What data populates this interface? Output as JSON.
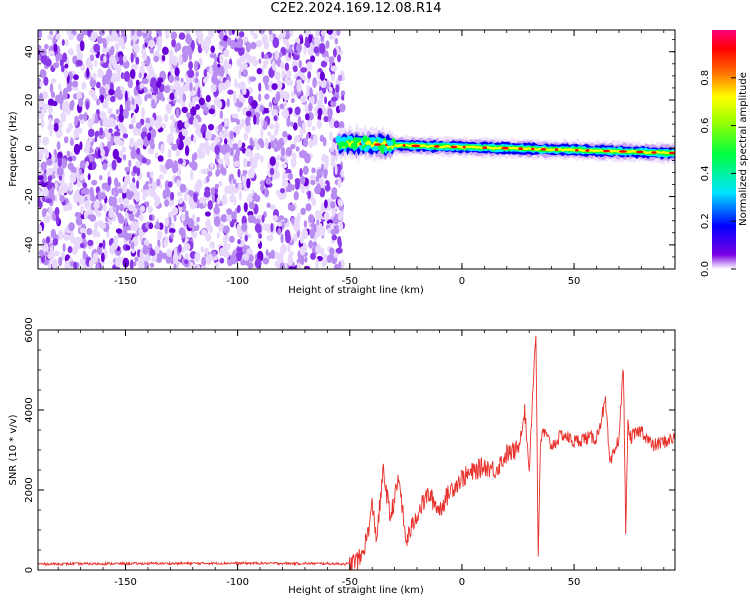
{
  "title": "C2E2.2024.169.12.08.R14",
  "colors": {
    "snr_line": "#e8302a",
    "colormap": [
      "#ffffff",
      "#7a00e6",
      "#0000ff",
      "#00e5ff",
      "#00ff40",
      "#a0ff00",
      "#ffff00",
      "#ff7000",
      "#ff0000",
      "#ff0080"
    ]
  },
  "chart_data": [
    {
      "type": "heatmap",
      "xlabel": "Height of straight line (km)",
      "ylabel": "Frequency (Hz)",
      "xlim": [
        -189,
        95
      ],
      "ylim": [
        -50,
        49
      ],
      "xticks": [
        -150,
        -100,
        -50,
        0,
        50
      ],
      "yticks": [
        -40,
        -20,
        0,
        20,
        40
      ],
      "noise_region_x": [
        -189,
        -53
      ],
      "noise_level": 0.12,
      "signal_band": {
        "x": [
          -55,
          95
        ],
        "center_hz": [
          2,
          1,
          0,
          -1,
          -2
        ],
        "center_x": [
          -50,
          -20,
          20,
          60,
          95
        ],
        "width_hz": 6,
        "peak_amplitude": 0.97
      },
      "colorbar": {
        "label": "Normalized spectral amplitude",
        "range": [
          0.0,
          1.0
        ],
        "ticks": [
          "0.0",
          "0.2",
          "0.4",
          "0.6",
          "0.8"
        ]
      }
    },
    {
      "type": "line",
      "xlabel": "Height of straight line (km)",
      "ylabel": "SNR (10 * v/v)",
      "xlim": [
        -189,
        95
      ],
      "ylim": [
        0,
        6000
      ],
      "xticks": [
        -150,
        -100,
        -50,
        0,
        50
      ],
      "yticks": [
        0,
        2000,
        4000,
        6000
      ],
      "series": [
        {
          "x": [
            -189,
            -150,
            -100,
            -60,
            -50,
            -45,
            -42,
            -40,
            -38,
            -35,
            -32,
            -28,
            -25,
            -20,
            -15,
            -10,
            -5,
            0,
            10,
            15,
            20,
            25,
            28,
            30,
            32,
            33,
            34,
            35,
            36,
            40,
            45,
            50,
            55,
            60,
            64,
            66,
            70,
            72,
            73,
            74,
            75,
            80,
            85,
            90,
            95
          ],
          "values": [
            150,
            160,
            170,
            160,
            150,
            300,
            900,
            1600,
            800,
            2500,
            1300,
            2300,
            700,
            1400,
            1900,
            1500,
            2000,
            2300,
            2600,
            2500,
            2900,
            3000,
            4000,
            2500,
            5000,
            5900,
            400,
            3000,
            3500,
            3100,
            3400,
            3200,
            3300,
            3300,
            4200,
            2600,
            3300,
            5100,
            1000,
            3600,
            3300,
            3500,
            3100,
            3200,
            3300
          ]
        }
      ]
    }
  ]
}
